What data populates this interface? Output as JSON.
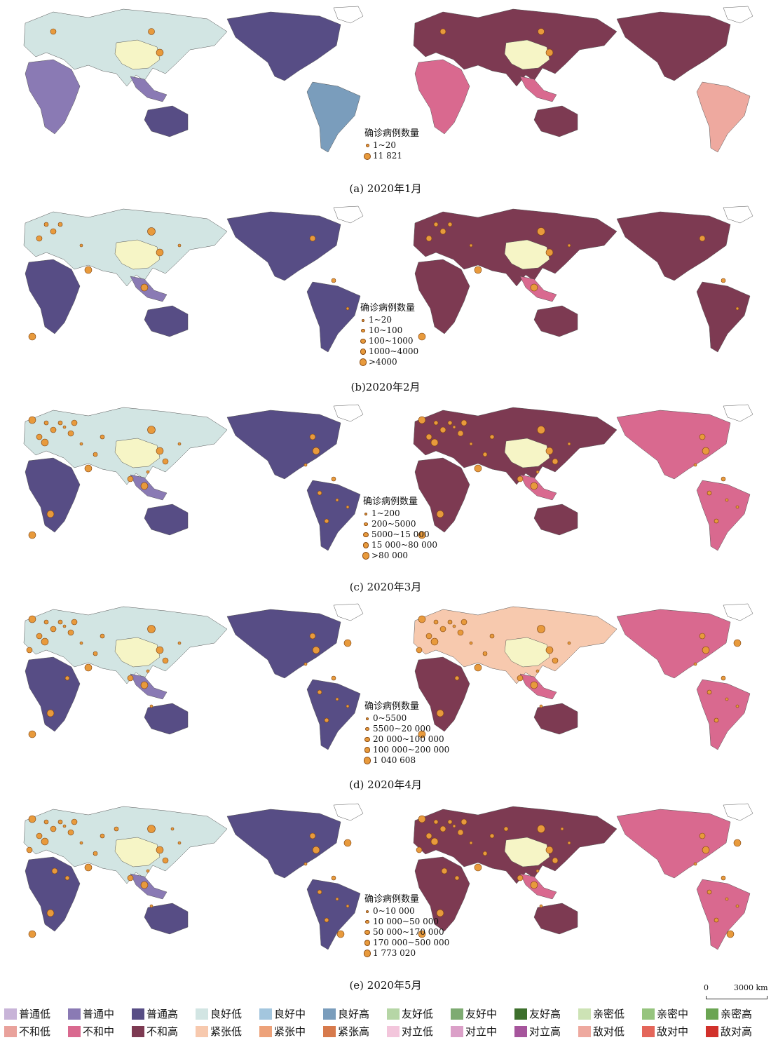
{
  "panels": [
    {
      "caption": "(a) 2020年1月",
      "legend_title": "确诊病例数量",
      "ranges": [
        "1~20",
        "11 821"
      ]
    },
    {
      "caption": "(b)2020年2月",
      "legend_title": "确诊病例数量",
      "ranges": [
        "1~20",
        "10~100",
        "100~1000",
        "1000~4000",
        ">4000"
      ]
    },
    {
      "caption": "(c) 2020年3月",
      "legend_title": "确诊病例数量",
      "ranges": [
        "1~200",
        "200~5000",
        "5000~15 000",
        "15 000~80 000",
        ">80 000"
      ]
    },
    {
      "caption": "(d) 2020年4月",
      "legend_title": "确诊病例数量",
      "ranges": [
        "0~5500",
        "5500~20 000",
        "20 000~100 000",
        "100 000~200 000",
        "1 040 608"
      ]
    },
    {
      "caption": "(e) 2020年5月",
      "legend_title": "确诊病例数量",
      "ranges": [
        "0~10 000",
        "10 000~50 000",
        "50 000~170 000",
        "170 000~500 000",
        "1 773 020"
      ]
    }
  ],
  "scale_bar": {
    "zero": "0",
    "distance": "3000 km"
  },
  "classes": [
    {
      "label": "普通低",
      "color": "#c8b4d8"
    },
    {
      "label": "普通中",
      "color": "#8a7ab4"
    },
    {
      "label": "普通高",
      "color": "#574d85"
    },
    {
      "label": "良好低",
      "color": "#d2e5e3"
    },
    {
      "label": "良好中",
      "color": "#a3c6de"
    },
    {
      "label": "良好高",
      "color": "#7a9dbc"
    },
    {
      "label": "友好低",
      "color": "#b6d6a6"
    },
    {
      "label": "友好中",
      "color": "#7eab72"
    },
    {
      "label": "友好高",
      "color": "#3d6f2c"
    },
    {
      "label": "亲密低",
      "color": "#cde3b5"
    },
    {
      "label": "亲密中",
      "color": "#96c47e"
    },
    {
      "label": "亲密高",
      "color": "#6ba553"
    },
    {
      "label": "不和低",
      "color": "#e9a29c"
    },
    {
      "label": "不和中",
      "color": "#d9698f"
    },
    {
      "label": "不和高",
      "color": "#7d3a52"
    },
    {
      "label": "紧张低",
      "color": "#f7c9ae"
    },
    {
      "label": "紧张中",
      "color": "#eda27a"
    },
    {
      "label": "紧张高",
      "color": "#d77a4c"
    },
    {
      "label": "对立低",
      "color": "#f3c6dc"
    },
    {
      "label": "对立中",
      "color": "#dba0c8"
    },
    {
      "label": "对立高",
      "color": "#a6559c"
    },
    {
      "label": "敌对低",
      "color": "#eea99f"
    },
    {
      "label": "敌对中",
      "color": "#e4665a"
    },
    {
      "label": "敌对高",
      "color": "#d1312b"
    }
  ],
  "map_colors": {
    "china": "#f6f5c6",
    "left_base": "#d2e5e3",
    "left_dark": "#574d85",
    "left_mid": "#8a7ab4",
    "left_blue": "#7a9dbc",
    "right_base": "#7d3a52",
    "right_pink": "#d9698f",
    "right_peach": "#f7c9ae",
    "right_salmon": "#eea99f",
    "point": "#e89a3c"
  }
}
